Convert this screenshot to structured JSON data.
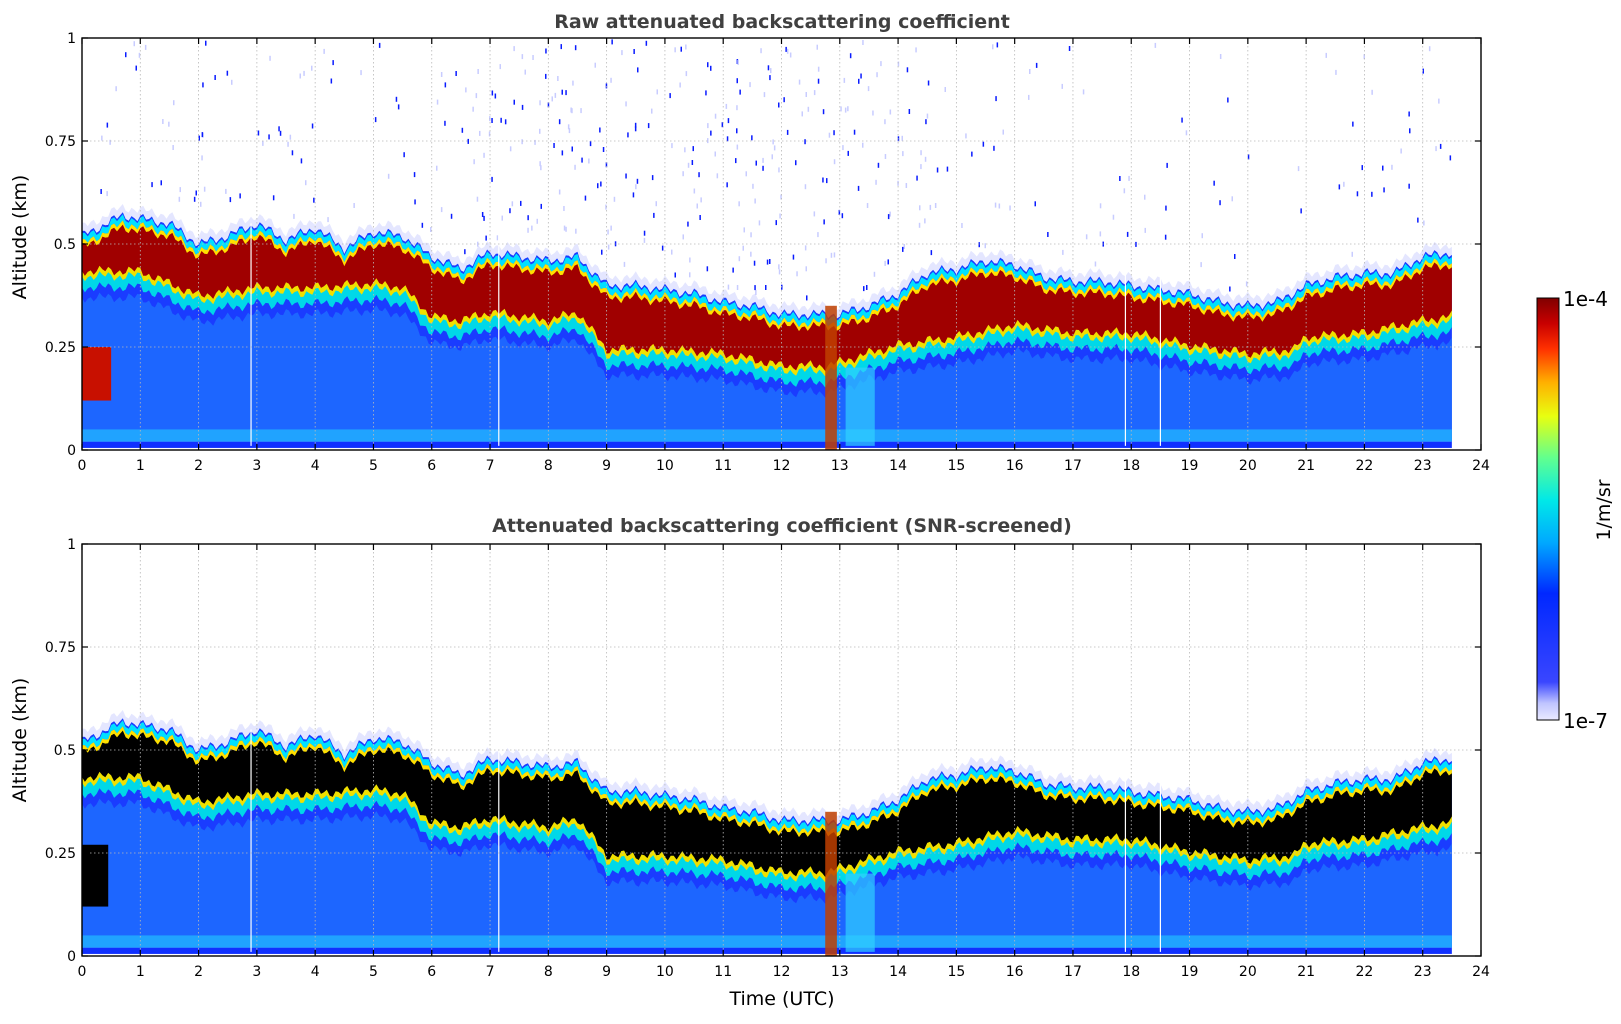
{
  "chart_data": [
    {
      "type": "heatmap",
      "title": "Raw attenuated backscattering coefficient",
      "xlabel": "",
      "ylabel": "Altitude (km)",
      "xlim": [
        0,
        24
      ],
      "ylim": [
        0,
        1
      ],
      "x_ticks": [
        "0",
        "1",
        "2",
        "3",
        "4",
        "5",
        "6",
        "7",
        "8",
        "9",
        "10",
        "11",
        "12",
        "13",
        "14",
        "15",
        "16",
        "17",
        "18",
        "19",
        "20",
        "21",
        "22",
        "23",
        "24"
      ],
      "y_ticks": [
        "0",
        "0.25",
        "0.5",
        "0.75",
        "1"
      ],
      "grid": true,
      "data_extent_hours": [
        0,
        23.5
      ],
      "layer_top_km": [
        [
          0,
          0.52
        ],
        [
          0.7,
          0.57
        ],
        [
          1.5,
          0.55
        ],
        [
          2,
          0.5
        ],
        [
          2.5,
          0.52
        ],
        [
          3,
          0.55
        ],
        [
          3.5,
          0.51
        ],
        [
          4,
          0.54
        ],
        [
          4.5,
          0.49
        ],
        [
          5,
          0.53
        ],
        [
          5.5,
          0.52
        ],
        [
          6,
          0.47
        ],
        [
          6.5,
          0.44
        ],
        [
          7,
          0.48
        ],
        [
          7.5,
          0.47
        ],
        [
          8,
          0.46
        ],
        [
          8.5,
          0.47
        ],
        [
          9,
          0.4
        ],
        [
          9.5,
          0.4
        ],
        [
          10,
          0.39
        ],
        [
          10.5,
          0.38
        ],
        [
          11,
          0.36
        ],
        [
          11.5,
          0.35
        ],
        [
          12,
          0.33
        ],
        [
          12.5,
          0.33
        ],
        [
          13,
          0.33
        ],
        [
          13.5,
          0.35
        ],
        [
          14,
          0.38
        ],
        [
          14.5,
          0.43
        ],
        [
          15,
          0.44
        ],
        [
          15.5,
          0.46
        ],
        [
          16,
          0.45
        ],
        [
          16.5,
          0.42
        ],
        [
          17,
          0.41
        ],
        [
          17.5,
          0.41
        ],
        [
          18,
          0.4
        ],
        [
          18.5,
          0.39
        ],
        [
          19,
          0.38
        ],
        [
          19.5,
          0.36
        ],
        [
          20,
          0.35
        ],
        [
          20.5,
          0.36
        ],
        [
          21,
          0.4
        ],
        [
          21.5,
          0.42
        ],
        [
          22,
          0.43
        ],
        [
          22.5,
          0.43
        ],
        [
          23,
          0.47
        ],
        [
          23.5,
          0.48
        ]
      ],
      "layer_base_km": [
        [
          0,
          0.4
        ],
        [
          1,
          0.4
        ],
        [
          2,
          0.34
        ],
        [
          3,
          0.36
        ],
        [
          4,
          0.36
        ],
        [
          5,
          0.37
        ],
        [
          5.5,
          0.36
        ],
        [
          6,
          0.29
        ],
        [
          6.5,
          0.28
        ],
        [
          7,
          0.3
        ],
        [
          8,
          0.28
        ],
        [
          8.5,
          0.3
        ],
        [
          9,
          0.21
        ],
        [
          10,
          0.21
        ],
        [
          11,
          0.2
        ],
        [
          12,
          0.17
        ],
        [
          12.8,
          0.17
        ],
        [
          13.5,
          0.2
        ],
        [
          14,
          0.22
        ],
        [
          15,
          0.24
        ],
        [
          16,
          0.27
        ],
        [
          17,
          0.25
        ],
        [
          18,
          0.25
        ],
        [
          19,
          0.22
        ],
        [
          20,
          0.2
        ],
        [
          20.8,
          0.21
        ],
        [
          21,
          0.24
        ],
        [
          22,
          0.25
        ],
        [
          23,
          0.28
        ],
        [
          23.5,
          0.29
        ]
      ]
    },
    {
      "type": "heatmap",
      "title": "Attenuated backscattering coefficient (SNR-screened)",
      "xlabel": "Time (UTC)",
      "ylabel": "Altitude (km)",
      "xlim": [
        0,
        24
      ],
      "ylim": [
        0,
        1
      ],
      "x_ticks": [
        "0",
        "1",
        "2",
        "3",
        "4",
        "5",
        "6",
        "7",
        "8",
        "9",
        "10",
        "11",
        "12",
        "13",
        "14",
        "15",
        "16",
        "17",
        "18",
        "19",
        "20",
        "21",
        "22",
        "23",
        "24"
      ],
      "y_ticks": [
        "0",
        "0.25",
        "0.5",
        "0.75",
        "1"
      ],
      "grid": true,
      "screened_core_color": "#000000"
    }
  ],
  "colorbar": {
    "label": "1/m/sr",
    "max_label": "1e-4",
    "min_label": "1e-7",
    "scale": "log",
    "colormap": "jet"
  }
}
